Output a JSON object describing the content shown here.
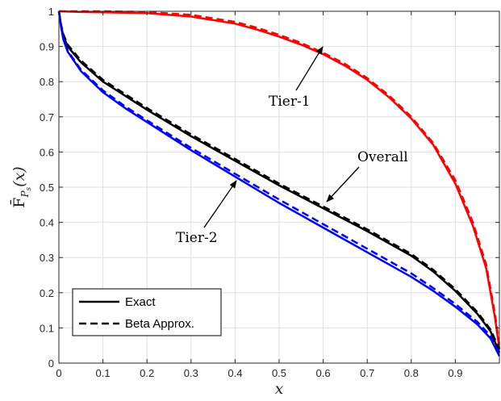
{
  "chart_data": {
    "type": "line",
    "title": "",
    "xlabel": "x",
    "ylabel": "F̄_{P_s}(x)",
    "xlim": [
      0,
      1
    ],
    "ylim": [
      0,
      1
    ],
    "grid": true,
    "legend_position": "bottom-left",
    "x_ticks": [
      "0",
      "0.1",
      "0.2",
      "0.3",
      "0.4",
      "0.5",
      "0.6",
      "0.7",
      "0.8",
      "0.9"
    ],
    "y_ticks": [
      "0",
      "0.1",
      "0.2",
      "0.3",
      "0.4",
      "0.5",
      "0.6",
      "0.7",
      "0.8",
      "0.9",
      "1"
    ],
    "legend": [
      {
        "label": "Exact",
        "style": "solid"
      },
      {
        "label": "Beta Approx.",
        "style": "dashed"
      }
    ],
    "annotations": [
      {
        "text": "Tier-1",
        "points_to": [
          0.6,
          0.9
        ]
      },
      {
        "text": "Overall",
        "points_to": [
          0.6,
          0.45
        ]
      },
      {
        "text": "Tier-2",
        "points_to": [
          0.4,
          0.53
        ]
      }
    ],
    "series": [
      {
        "name": "Tier-1",
        "color": "#ff0000",
        "style": "solid",
        "x": [
          0,
          0.05,
          0.1,
          0.2,
          0.3,
          0.4,
          0.45,
          0.5,
          0.55,
          0.6,
          0.65,
          0.7,
          0.75,
          0.8,
          0.85,
          0.9,
          0.94,
          0.97,
          0.99,
          1.0
        ],
        "y": [
          1.0,
          0.998,
          0.997,
          0.995,
          0.985,
          0.965,
          0.948,
          0.928,
          0.905,
          0.878,
          0.845,
          0.805,
          0.755,
          0.695,
          0.62,
          0.51,
          0.39,
          0.27,
          0.13,
          0.04
        ]
      },
      {
        "name": "Tier-1",
        "color": "#ff0000",
        "style": "dashed",
        "x": [
          0,
          0.05,
          0.1,
          0.2,
          0.3,
          0.4,
          0.45,
          0.5,
          0.55,
          0.6,
          0.65,
          0.7,
          0.75,
          0.8,
          0.85,
          0.9,
          0.94,
          0.97,
          0.99,
          1.0
        ],
        "y": [
          1.0,
          1.0,
          1.0,
          0.998,
          0.99,
          0.97,
          0.953,
          0.933,
          0.91,
          0.882,
          0.85,
          0.81,
          0.76,
          0.7,
          0.625,
          0.52,
          0.4,
          0.28,
          0.14,
          0.05
        ]
      },
      {
        "name": "Overall",
        "color": "#000000",
        "style": "solid",
        "x": [
          0,
          0.005,
          0.01,
          0.02,
          0.05,
          0.1,
          0.15,
          0.2,
          0.3,
          0.4,
          0.5,
          0.6,
          0.7,
          0.8,
          0.85,
          0.9,
          0.95,
          0.98,
          1.0
        ],
        "y": [
          1.0,
          0.96,
          0.93,
          0.9,
          0.855,
          0.8,
          0.76,
          0.72,
          0.645,
          0.575,
          0.505,
          0.44,
          0.375,
          0.305,
          0.26,
          0.205,
          0.14,
          0.09,
          0.03
        ]
      },
      {
        "name": "Overall",
        "color": "#000000",
        "style": "dashed",
        "x": [
          0,
          0.005,
          0.01,
          0.02,
          0.05,
          0.1,
          0.15,
          0.2,
          0.3,
          0.4,
          0.5,
          0.6,
          0.7,
          0.8,
          0.85,
          0.9,
          0.95,
          0.98,
          1.0
        ],
        "y": [
          1.0,
          0.962,
          0.935,
          0.905,
          0.86,
          0.805,
          0.765,
          0.725,
          0.65,
          0.58,
          0.51,
          0.445,
          0.38,
          0.31,
          0.265,
          0.21,
          0.145,
          0.095,
          0.04
        ]
      },
      {
        "name": "Tier-2",
        "color": "#0000ff",
        "style": "solid",
        "x": [
          0,
          0.005,
          0.01,
          0.02,
          0.05,
          0.1,
          0.15,
          0.2,
          0.3,
          0.4,
          0.5,
          0.6,
          0.7,
          0.8,
          0.85,
          0.9,
          0.95,
          0.98,
          1.0
        ],
        "y": [
          1.0,
          0.955,
          0.92,
          0.885,
          0.83,
          0.77,
          0.725,
          0.685,
          0.605,
          0.53,
          0.455,
          0.385,
          0.315,
          0.245,
          0.205,
          0.16,
          0.11,
          0.07,
          0.02
        ]
      },
      {
        "name": "Tier-2",
        "color": "#0000ff",
        "style": "dashed",
        "x": [
          0,
          0.005,
          0.01,
          0.02,
          0.05,
          0.1,
          0.15,
          0.2,
          0.3,
          0.4,
          0.5,
          0.6,
          0.7,
          0.8,
          0.85,
          0.9,
          0.95,
          0.98,
          1.0
        ],
        "y": [
          1.0,
          0.957,
          0.923,
          0.888,
          0.834,
          0.775,
          0.73,
          0.69,
          0.612,
          0.538,
          0.465,
          0.395,
          0.325,
          0.255,
          0.213,
          0.168,
          0.117,
          0.077,
          0.025
        ]
      }
    ]
  }
}
